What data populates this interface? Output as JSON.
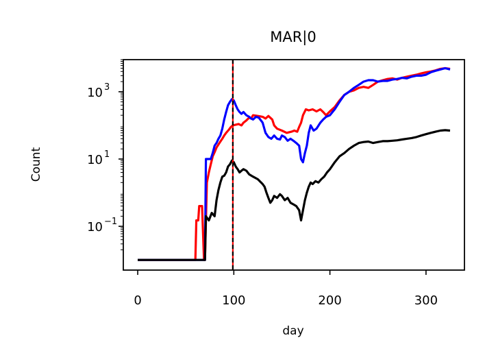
{
  "chart_data": {
    "type": "line",
    "title": "MAR|0",
    "xlabel": "day",
    "ylabel": "Count",
    "yscale": "log",
    "xlim": [
      -15,
      340
    ],
    "ylim": [
      0.005,
      9000
    ],
    "xticks": [
      0,
      100,
      200,
      300
    ],
    "yticks": [
      {
        "value": 0.1,
        "base": "10",
        "exp": "−1"
      },
      {
        "value": 10,
        "base": "10",
        "exp": "1"
      },
      {
        "value": 1000,
        "base": "10",
        "exp": "3"
      }
    ],
    "vline": {
      "x": 99,
      "style": "dashed",
      "colors": [
        "#000000",
        "#ff0000"
      ]
    },
    "grid": false,
    "series": [
      {
        "color": "#ff0000",
        "points": [
          [
            0,
            0.01
          ],
          [
            60,
            0.01
          ],
          [
            61,
            0.15
          ],
          [
            63,
            0.15
          ],
          [
            64,
            0.4
          ],
          [
            67,
            0.4
          ],
          [
            69,
            0.01
          ],
          [
            70,
            0.01
          ],
          [
            72,
            2
          ],
          [
            74,
            4
          ],
          [
            76,
            7
          ],
          [
            78,
            12
          ],
          [
            80,
            16
          ],
          [
            82,
            22
          ],
          [
            85,
            30
          ],
          [
            88,
            40
          ],
          [
            90,
            50
          ],
          [
            92,
            60
          ],
          [
            95,
            75
          ],
          [
            97,
            90
          ],
          [
            99,
            100
          ],
          [
            102,
            105
          ],
          [
            105,
            110
          ],
          [
            108,
            100
          ],
          [
            110,
            120
          ],
          [
            113,
            140
          ],
          [
            116,
            170
          ],
          [
            118,
            160
          ],
          [
            120,
            200
          ],
          [
            125,
            190
          ],
          [
            130,
            180
          ],
          [
            133,
            160
          ],
          [
            136,
            190
          ],
          [
            140,
            150
          ],
          [
            142,
            100
          ],
          [
            145,
            80
          ],
          [
            150,
            70
          ],
          [
            155,
            60
          ],
          [
            160,
            65
          ],
          [
            163,
            70
          ],
          [
            166,
            65
          ],
          [
            168,
            90
          ],
          [
            170,
            120
          ],
          [
            172,
            200
          ],
          [
            175,
            300
          ],
          [
            178,
            280
          ],
          [
            182,
            300
          ],
          [
            186,
            260
          ],
          [
            190,
            300
          ],
          [
            193,
            250
          ],
          [
            196,
            200
          ],
          [
            200,
            260
          ],
          [
            205,
            350
          ],
          [
            210,
            550
          ],
          [
            215,
            800
          ],
          [
            220,
            1000
          ],
          [
            225,
            1100
          ],
          [
            230,
            1300
          ],
          [
            235,
            1400
          ],
          [
            240,
            1300
          ],
          [
            245,
            1600
          ],
          [
            250,
            2000
          ],
          [
            255,
            2200
          ],
          [
            260,
            2400
          ],
          [
            265,
            2500
          ],
          [
            270,
            2300
          ],
          [
            275,
            2600
          ],
          [
            280,
            2800
          ],
          [
            285,
            3000
          ],
          [
            290,
            3200
          ],
          [
            295,
            3500
          ],
          [
            300,
            3800
          ],
          [
            305,
            4000
          ],
          [
            310,
            4300
          ],
          [
            315,
            4800
          ],
          [
            320,
            5000
          ],
          [
            325,
            4800
          ]
        ]
      },
      {
        "color": "#0000ff",
        "points": [
          [
            0,
            0.01
          ],
          [
            70,
            0.01
          ],
          [
            71,
            10
          ],
          [
            74,
            10
          ],
          [
            76,
            10
          ],
          [
            78,
            15
          ],
          [
            80,
            25
          ],
          [
            82,
            30
          ],
          [
            84,
            40
          ],
          [
            86,
            50
          ],
          [
            88,
            80
          ],
          [
            90,
            150
          ],
          [
            92,
            250
          ],
          [
            94,
            400
          ],
          [
            96,
            500
          ],
          [
            98,
            600
          ],
          [
            100,
            550
          ],
          [
            102,
            400
          ],
          [
            104,
            300
          ],
          [
            106,
            250
          ],
          [
            108,
            220
          ],
          [
            110,
            250
          ],
          [
            113,
            200
          ],
          [
            116,
            180
          ],
          [
            118,
            160
          ],
          [
            120,
            150
          ],
          [
            123,
            180
          ],
          [
            126,
            170
          ],
          [
            130,
            120
          ],
          [
            133,
            60
          ],
          [
            136,
            45
          ],
          [
            139,
            40
          ],
          [
            142,
            50
          ],
          [
            145,
            40
          ],
          [
            148,
            38
          ],
          [
            150,
            50
          ],
          [
            153,
            45
          ],
          [
            156,
            35
          ],
          [
            159,
            40
          ],
          [
            162,
            35
          ],
          [
            165,
            30
          ],
          [
            168,
            25
          ],
          [
            170,
            10
          ],
          [
            172,
            8
          ],
          [
            174,
            15
          ],
          [
            176,
            25
          ],
          [
            178,
            60
          ],
          [
            180,
            100
          ],
          [
            183,
            70
          ],
          [
            186,
            80
          ],
          [
            190,
            120
          ],
          [
            193,
            150
          ],
          [
            196,
            180
          ],
          [
            200,
            200
          ],
          [
            205,
            300
          ],
          [
            210,
            500
          ],
          [
            215,
            800
          ],
          [
            220,
            1000
          ],
          [
            225,
            1300
          ],
          [
            230,
            1600
          ],
          [
            235,
            2000
          ],
          [
            240,
            2200
          ],
          [
            245,
            2200
          ],
          [
            250,
            2000
          ],
          [
            255,
            2100
          ],
          [
            260,
            2100
          ],
          [
            265,
            2300
          ],
          [
            270,
            2400
          ],
          [
            275,
            2600
          ],
          [
            280,
            2500
          ],
          [
            285,
            2800
          ],
          [
            290,
            3000
          ],
          [
            295,
            3000
          ],
          [
            300,
            3200
          ],
          [
            305,
            3800
          ],
          [
            310,
            4200
          ],
          [
            315,
            4600
          ],
          [
            320,
            5000
          ],
          [
            325,
            4600
          ]
        ]
      },
      {
        "color": "#000000",
        "points": [
          [
            0,
            0.01
          ],
          [
            70,
            0.01
          ],
          [
            71,
            0.2
          ],
          [
            74,
            0.15
          ],
          [
            77,
            0.25
          ],
          [
            80,
            0.2
          ],
          [
            82,
            0.6
          ],
          [
            84,
            1.2
          ],
          [
            86,
            2
          ],
          [
            88,
            3
          ],
          [
            90,
            3.2
          ],
          [
            92,
            4
          ],
          [
            94,
            6
          ],
          [
            96,
            7
          ],
          [
            98,
            9
          ],
          [
            100,
            8
          ],
          [
            102,
            6
          ],
          [
            104,
            5
          ],
          [
            106,
            4
          ],
          [
            108,
            4.5
          ],
          [
            110,
            5
          ],
          [
            113,
            4.5
          ],
          [
            116,
            3.5
          ],
          [
            120,
            3
          ],
          [
            125,
            2.5
          ],
          [
            130,
            1.8
          ],
          [
            132,
            1.5
          ],
          [
            134,
            1
          ],
          [
            136,
            0.7
          ],
          [
            138,
            0.5
          ],
          [
            140,
            0.6
          ],
          [
            142,
            0.8
          ],
          [
            145,
            0.7
          ],
          [
            148,
            0.9
          ],
          [
            150,
            0.8
          ],
          [
            153,
            0.6
          ],
          [
            156,
            0.7
          ],
          [
            159,
            0.5
          ],
          [
            162,
            0.45
          ],
          [
            165,
            0.4
          ],
          [
            168,
            0.3
          ],
          [
            170,
            0.15
          ],
          [
            172,
            0.3
          ],
          [
            174,
            0.6
          ],
          [
            176,
            1
          ],
          [
            178,
            1.5
          ],
          [
            180,
            2
          ],
          [
            182,
            1.8
          ],
          [
            185,
            2.2
          ],
          [
            188,
            2
          ],
          [
            191,
            2.5
          ],
          [
            194,
            3
          ],
          [
            197,
            4
          ],
          [
            200,
            5
          ],
          [
            205,
            8
          ],
          [
            210,
            12
          ],
          [
            215,
            15
          ],
          [
            220,
            20
          ],
          [
            225,
            25
          ],
          [
            230,
            30
          ],
          [
            235,
            32
          ],
          [
            240,
            33
          ],
          [
            245,
            30
          ],
          [
            250,
            32
          ],
          [
            255,
            34
          ],
          [
            260,
            34
          ],
          [
            265,
            35
          ],
          [
            270,
            36
          ],
          [
            275,
            38
          ],
          [
            280,
            40
          ],
          [
            285,
            42
          ],
          [
            290,
            45
          ],
          [
            295,
            50
          ],
          [
            300,
            55
          ],
          [
            305,
            60
          ],
          [
            310,
            65
          ],
          [
            315,
            70
          ],
          [
            320,
            72
          ],
          [
            325,
            70
          ]
        ]
      }
    ]
  }
}
